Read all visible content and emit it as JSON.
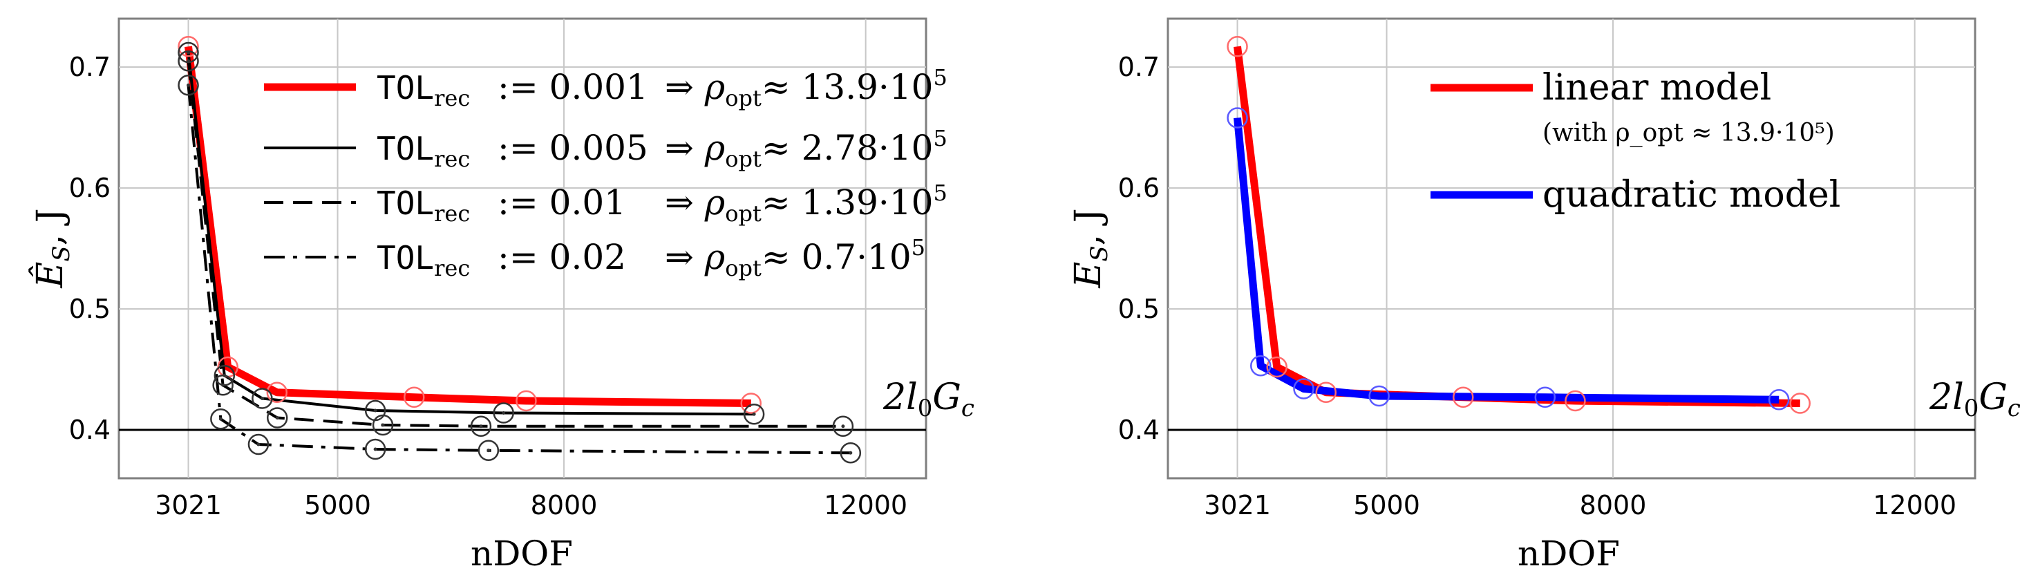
{
  "chart_data": [
    {
      "type": "line",
      "xlabel": "nDOF",
      "ylabel": "Ê_S, J",
      "xticks": [
        3021,
        5000,
        8000,
        12000
      ],
      "yticks": [
        0.4,
        0.5,
        0.6,
        0.7
      ],
      "xlim": [
        2100,
        12800
      ],
      "ylim": [
        0.36,
        0.74
      ],
      "grid": true,
      "reference_line": {
        "y": 0.4,
        "label": "2l₀G_c"
      },
      "legend_position": "top-right",
      "series": [
        {
          "name": "TOL_rec := 0.001 ⇒ ρ_opt ≈ 13.9·10⁵",
          "tol_text": "TOL",
          "tol_sub": "rec",
          "tol_val": ":= 0.001",
          "rho_val": "≈ 13.9·10",
          "rho_exp": "5",
          "color": "#ff0000",
          "style": "solid",
          "x": [
            3021,
            3545,
            4196,
            6014,
            7500,
            10480
          ],
          "y": [
            0.717,
            0.452,
            0.431,
            0.427,
            0.424,
            0.422
          ]
        },
        {
          "name": "TOL_rec := 0.005 ⇒ ρ_opt ≈ 2.78·10⁵",
          "tol_text": "TOL",
          "tol_sub": "rec",
          "tol_val": ":= 0.005",
          "rho_val": "≈ 2.78·10",
          "rho_exp": "5",
          "color": "#000000",
          "style": "solid",
          "x": [
            3021,
            3500,
            4000,
            5500,
            7200,
            10520
          ],
          "y": [
            0.712,
            0.445,
            0.426,
            0.416,
            0.414,
            0.413
          ]
        },
        {
          "name": "TOL_rec := 0.01 ⇒ ρ_opt ≈ 1.39·10⁵",
          "tol_text": "TOL",
          "tol_sub": "rec",
          "tol_val": ":= 0.01",
          "rho_val": "≈ 1.39·10",
          "rho_exp": "5",
          "color": "#000000",
          "style": "dashed",
          "x": [
            3021,
            3480,
            4200,
            5600,
            6900,
            11700
          ],
          "y": [
            0.705,
            0.437,
            0.41,
            0.404,
            0.403,
            0.403
          ]
        },
        {
          "name": "TOL_rec := 0.02 ⇒ ρ_opt ≈ 0.7·10⁵",
          "tol_text": "TOL",
          "tol_sub": "rec",
          "tol_val": ":= 0.02",
          "rho_val": "≈ 0.7·10",
          "rho_exp": "5",
          "color": "#000000",
          "style": "dashdot",
          "x": [
            3021,
            3450,
            3950,
            5500,
            7000,
            11800
          ],
          "y": [
            0.685,
            0.409,
            0.388,
            0.384,
            0.383,
            0.381
          ]
        }
      ]
    },
    {
      "type": "line",
      "xlabel": "nDOF",
      "ylabel": "E_S, J",
      "xticks": [
        3021,
        5000,
        8000,
        12000
      ],
      "yticks": [
        0.4,
        0.5,
        0.6,
        0.7
      ],
      "xlim": [
        2100,
        12800
      ],
      "ylim": [
        0.36,
        0.74
      ],
      "grid": true,
      "reference_line": {
        "y": 0.4,
        "label": "2l₀G_c"
      },
      "legend_position": "top-right",
      "series": [
        {
          "name": "linear model",
          "note": "(with ρ_opt ≈ 13.9·10⁵)",
          "color": "#ff0000",
          "style": "solid",
          "x": [
            3021,
            3545,
            4196,
            6014,
            7500,
            10480
          ],
          "y": [
            0.717,
            0.452,
            0.431,
            0.427,
            0.424,
            0.422
          ]
        },
        {
          "name": "quadratic model",
          "color": "#0000ff",
          "style": "solid",
          "x": [
            3021,
            3330,
            3900,
            4900,
            7100,
            10200
          ],
          "y": [
            0.658,
            0.453,
            0.434,
            0.428,
            0.427,
            0.425
          ]
        }
      ]
    }
  ]
}
